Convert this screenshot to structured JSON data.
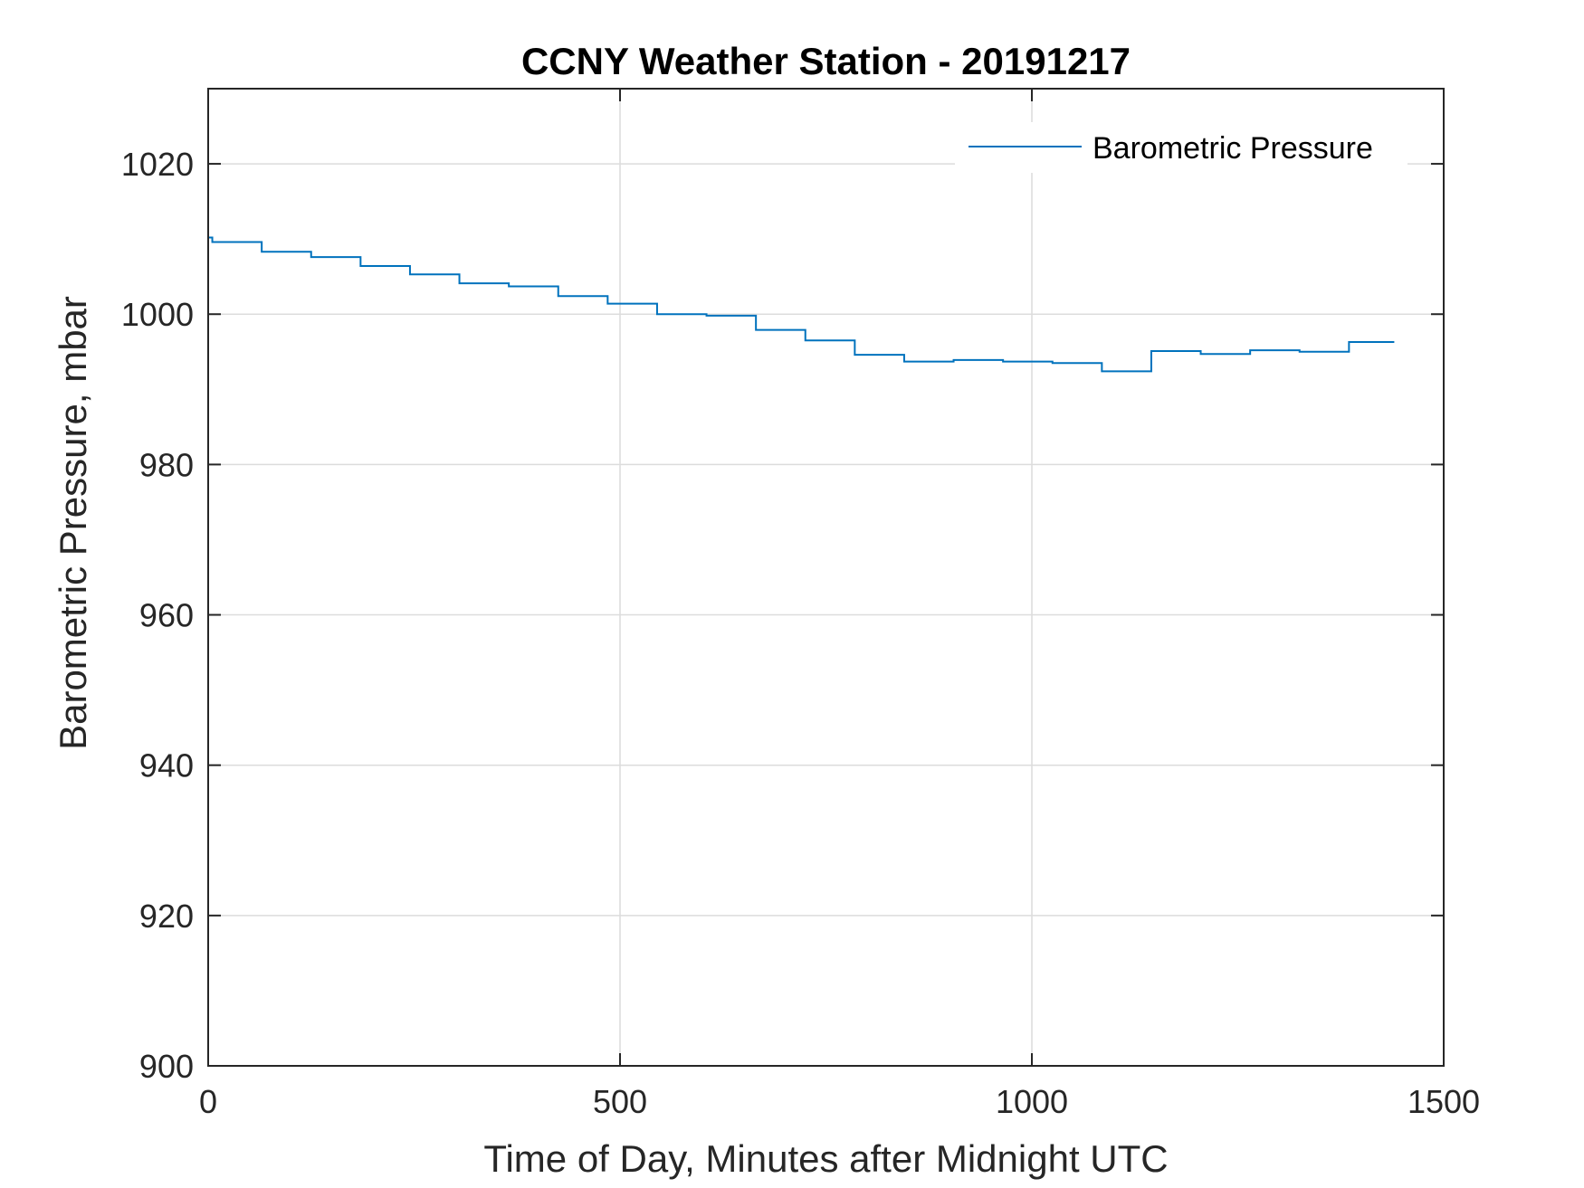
{
  "chart_data": {
    "type": "line",
    "title": "CCNY Weather Station - 20191217",
    "xlabel": "Time of Day, Minutes after Midnight UTC",
    "ylabel": "Barometric Pressure, mbar",
    "xlim": [
      0,
      1500
    ],
    "ylim": [
      900,
      1030
    ],
    "xticks": [
      0,
      500,
      1000,
      1500
    ],
    "yticks": [
      900,
      920,
      940,
      960,
      980,
      1000,
      1020
    ],
    "grid": true,
    "legend_position": "top-right",
    "series": [
      {
        "name": "Barometric Pressure",
        "color": "#0072BD",
        "step": true,
        "x": [
          0,
          5,
          65,
          125,
          185,
          245,
          305,
          365,
          425,
          485,
          545,
          605,
          665,
          725,
          785,
          845,
          905,
          965,
          1025,
          1085,
          1145,
          1205,
          1265,
          1325,
          1385,
          1440
        ],
        "y": [
          1010.2,
          1009.6,
          1008.3,
          1007.6,
          1006.4,
          1005.3,
          1004.1,
          1003.7,
          1002.4,
          1001.4,
          1000.0,
          999.8,
          997.9,
          996.5,
          994.6,
          993.7,
          993.9,
          993.7,
          993.5,
          992.4,
          995.1,
          994.7,
          995.2,
          995.0,
          996.3,
          996.3
        ]
      }
    ]
  }
}
